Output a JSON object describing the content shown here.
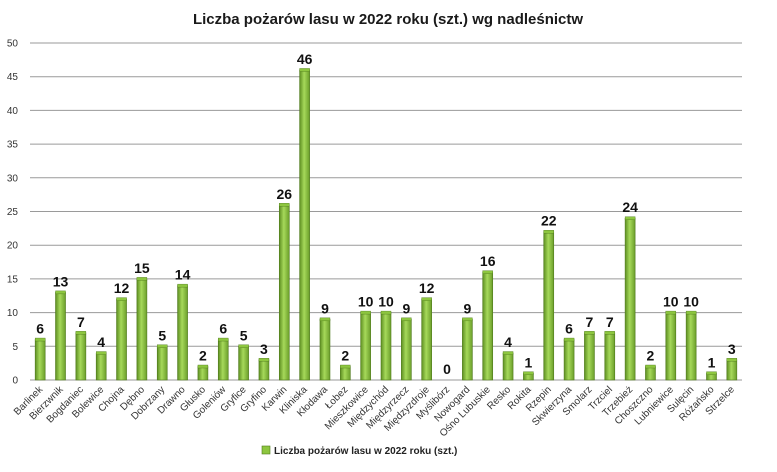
{
  "chart_data": {
    "type": "bar",
    "title": "Liczba pożarów lasu w 2022 roku (szt.) wg nadleśnictw",
    "xlabel": "",
    "ylabel": "",
    "ylim": [
      0,
      50
    ],
    "yticks": [
      0,
      5,
      10,
      15,
      20,
      25,
      30,
      35,
      40,
      45,
      50
    ],
    "grid": true,
    "legend_position": "bottom",
    "bar_color": "#8dc63f",
    "bar_color_dark": "#4f7a1c",
    "categories": [
      "Barlinek",
      "Bierzwnik",
      "Bogdaniec",
      "Bolewice",
      "Chojna",
      "Dębno",
      "Dobrzany",
      "Drawno",
      "Głusko",
      "Goleniów",
      "Gryfice",
      "Gryfino",
      "Karwin",
      "Kliniska",
      "Kłodawa",
      "Łobez",
      "Mieszkowice",
      "Międzychód",
      "Międzyrzecz",
      "Międzyzdroje",
      "Myślibórz",
      "Nowogard",
      "Ośno Lubuskie",
      "Resko",
      "Rokita",
      "Rzepin",
      "Skwierzyna",
      "Smolarz",
      "Trzciel",
      "Trzebież",
      "Choszczno",
      "Lubniewice",
      "Sulęcin",
      "Różańsko",
      "Strzelce"
    ],
    "series": [
      {
        "name": "Liczba pożarów lasu w 2022 roku (szt.)",
        "values": [
          6,
          13,
          7,
          4,
          12,
          15,
          5,
          14,
          2,
          6,
          5,
          3,
          26,
          46,
          9,
          2,
          10,
          10,
          9,
          12,
          0,
          9,
          16,
          4,
          1,
          22,
          6,
          7,
          7,
          24,
          2,
          10,
          10,
          1,
          3
        ]
      }
    ]
  }
}
